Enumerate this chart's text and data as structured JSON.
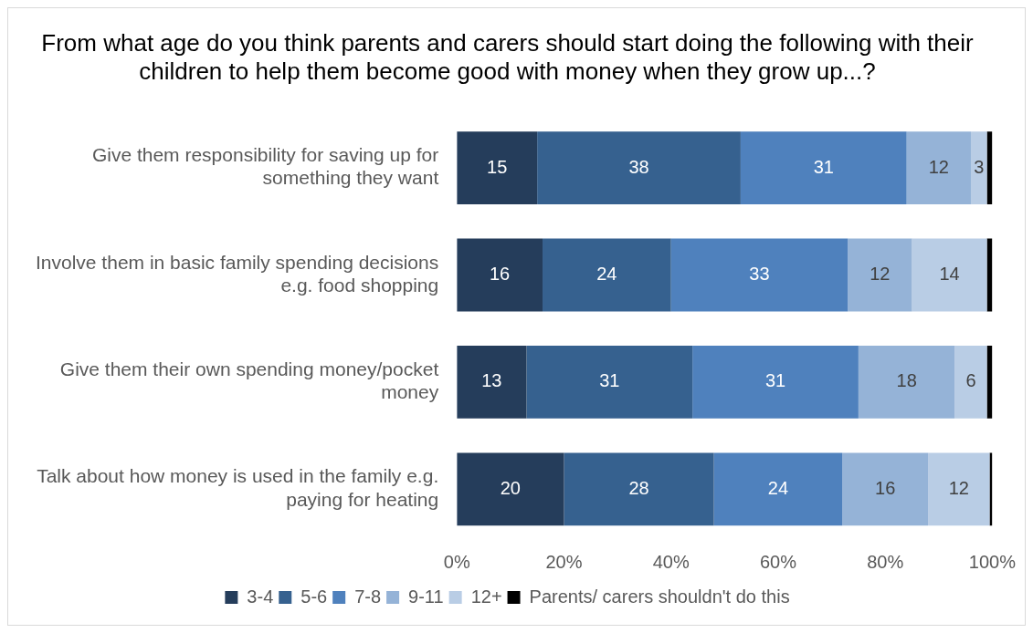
{
  "chart_data": {
    "type": "bar",
    "orientation": "horizontal",
    "stacked": true,
    "title": "From what age do you think parents and carers should start doing the following with their children to help them become good with money when they grow up...?",
    "categories": [
      "Give them responsibility for saving up for something they want",
      "Involve them in basic family spending decisions e.g. food shopping",
      "Give them their own spending money/pocket money",
      "Talk about how money is used in the family e.g. paying for heating"
    ],
    "series": [
      {
        "name": "3-4",
        "color": "#253d5b",
        "values": [
          15,
          16,
          13,
          20
        ],
        "value_labels": [
          "15",
          "16",
          "13",
          "20"
        ]
      },
      {
        "name": "5-6",
        "color": "#36618f",
        "values": [
          38,
          24,
          31,
          28
        ],
        "value_labels": [
          "38",
          "24",
          "31",
          "28"
        ]
      },
      {
        "name": "7-8",
        "color": "#4f81bd",
        "values": [
          31,
          33,
          31,
          24
        ],
        "value_labels": [
          "31",
          "33",
          "31",
          "24"
        ]
      },
      {
        "name": "9-11",
        "color": "#95b3d7",
        "values": [
          12,
          12,
          18,
          16
        ],
        "value_labels": [
          "12",
          "12",
          "18",
          "16"
        ]
      },
      {
        "name": "12+",
        "color": "#b9cde5",
        "values": [
          3,
          14,
          6,
          11.5
        ],
        "value_labels": [
          "3",
          "14",
          "6",
          "12"
        ]
      },
      {
        "name": "Parents/ carers shouldn't do this",
        "color": "#000000",
        "values": [
          1,
          1,
          1,
          0.5
        ]
      }
    ],
    "xlim": [
      0,
      100
    ],
    "xticks": [
      {
        "value": 0,
        "label": "0%"
      },
      {
        "value": 20,
        "label": "20%"
      },
      {
        "value": 40,
        "label": "40%"
      },
      {
        "value": 60,
        "label": "60%"
      },
      {
        "value": 80,
        "label": "80%"
      },
      {
        "value": 100,
        "label": "100%"
      }
    ],
    "grid": false,
    "legend": "bottom"
  }
}
